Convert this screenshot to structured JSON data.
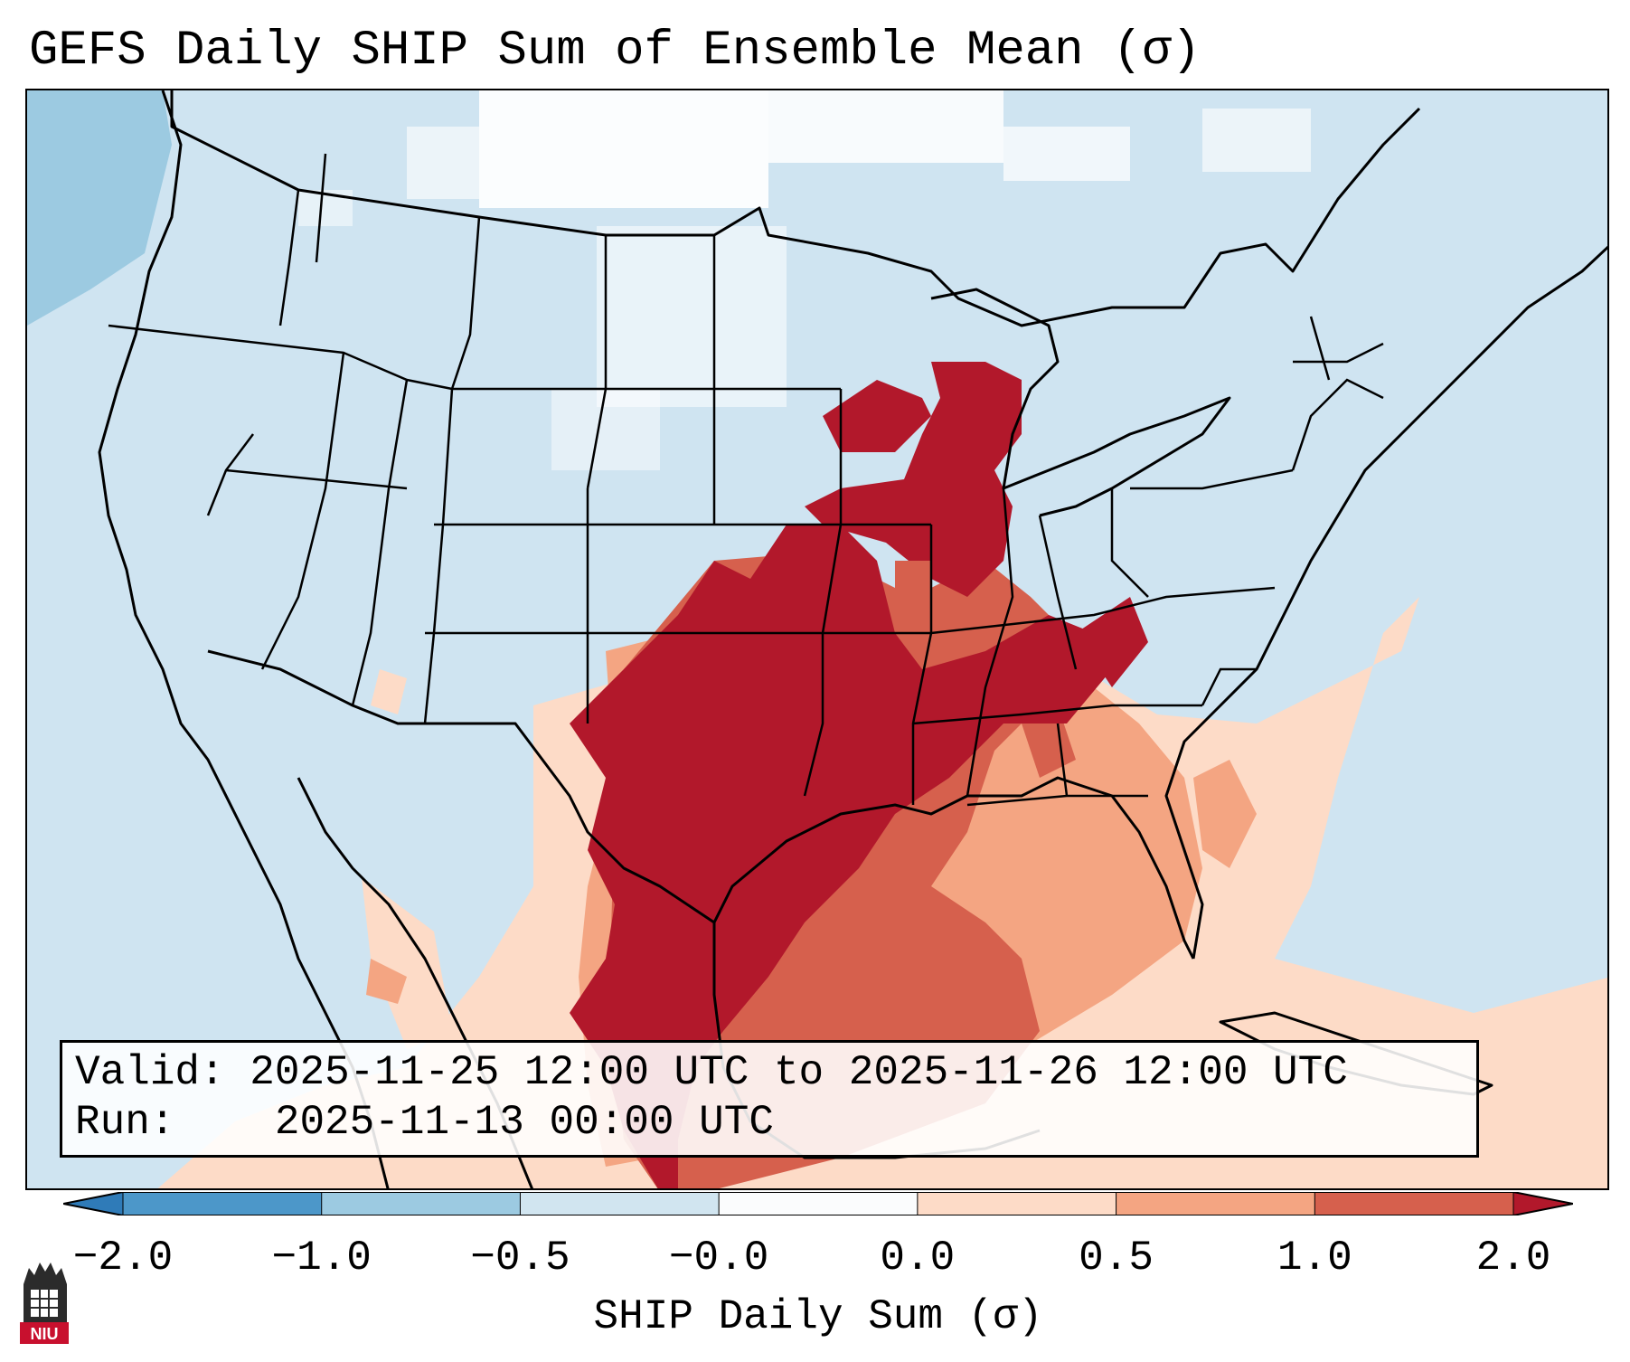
{
  "title": "GEFS Daily SHIP Sum of Ensemble Mean (σ)",
  "info": {
    "valid_label": "Valid:",
    "valid_value": "2025-11-25 12:00 UTC to 2025-11-26 12:00 UTC",
    "run_label": "Run:",
    "run_value": "2025-11-13 00:00 UTC"
  },
  "colorbar": {
    "title": "SHIP Daily Sum (σ)",
    "tick_labels": [
      "−2.0",
      "−1.0",
      "−0.5",
      "−0.0",
      "0.0",
      "0.5",
      "1.0",
      "2.0"
    ],
    "colors": [
      "#2f7bb8",
      "#4c97c9",
      "#9ccae1",
      "#d1e5f0",
      "#fbfcfd",
      "#fddbc7",
      "#f4a582",
      "#d6604d",
      "#b2182b"
    ],
    "extend": "both"
  },
  "map": {
    "region": "Contiguous United States with southern Canada, Mexico and the Caribbean",
    "background_color": "#cfe4f1",
    "highlight_colors": {
      "high": "#b2182b",
      "mid": "#d6604d",
      "low": "#f4a582",
      "slight": "#fddbc7",
      "neutral": "#ffffff",
      "negative": "#9ccae1"
    }
  },
  "logo": {
    "text": "NIU"
  }
}
